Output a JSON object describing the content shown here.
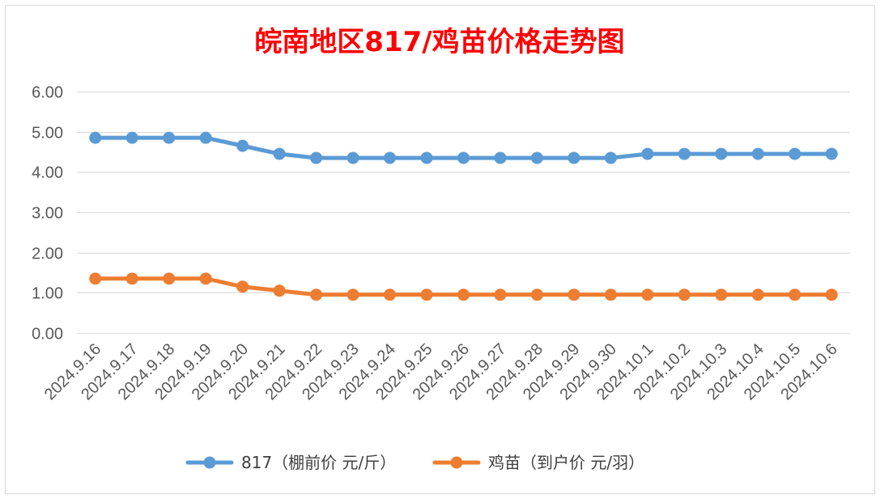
{
  "chart_data": {
    "type": "line",
    "title": "皖南地区817/鸡苗价格走势图",
    "title_color": "#ff0000",
    "x": [
      "2024.9.16",
      "2024.9.17",
      "2024.9.18",
      "2024.9.19",
      "2024.9.20",
      "2024.9.21",
      "2024.9.22",
      "2024.9.23",
      "2024.9.24",
      "2024.9.25",
      "2024.9.26",
      "2024.9.27",
      "2024.9.28",
      "2024.9.29",
      "2024.9.30",
      "2024.10.1",
      "2024.10.2",
      "2024.10.3",
      "2024.10.4",
      "2024.10.5",
      "2024.10.6"
    ],
    "series": [
      {
        "name": "817（棚前价 元/斤）",
        "color": "#5b9bd5",
        "values": [
          4.85,
          4.85,
          4.85,
          4.85,
          4.65,
          4.45,
          4.35,
          4.35,
          4.35,
          4.35,
          4.35,
          4.35,
          4.35,
          4.35,
          4.35,
          4.45,
          4.45,
          4.45,
          4.45,
          4.45,
          4.45
        ]
      },
      {
        "name": "鸡苗（到户价 元/羽）",
        "color": "#ed7d31",
        "values": [
          1.35,
          1.35,
          1.35,
          1.35,
          1.15,
          1.05,
          0.95,
          0.95,
          0.95,
          0.95,
          0.95,
          0.95,
          0.95,
          0.95,
          0.95,
          0.95,
          0.95,
          0.95,
          0.95,
          0.95,
          0.95
        ]
      }
    ],
    "y_ticks": [
      "0.00",
      "1.00",
      "2.00",
      "3.00",
      "4.00",
      "5.00",
      "6.00"
    ],
    "ylim": [
      0,
      6
    ],
    "grid": true,
    "legend_position": "bottom"
  }
}
